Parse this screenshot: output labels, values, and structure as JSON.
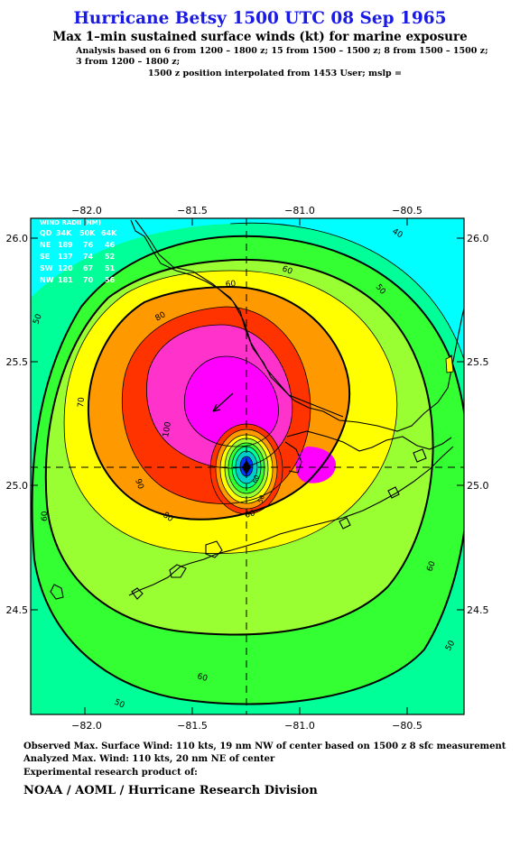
{
  "header": {
    "title": "Hurricane Betsy 1500 UTC 08 Sep 1965",
    "subtitle": "Max 1–min sustained surface winds (kt) for marine exposure",
    "analysis_line1": "Analysis based on  6 from 1200 – 1800 z;  15 from 1500 – 1500 z;  8 from 1500 – 1500 z;",
    "analysis_line2": "3 from 1200 – 1800 z;",
    "analysis_line3": "1500 z position interpolated from 1453 User; mslp ="
  },
  "map": {
    "lon_ticks": [
      "−82.0",
      "−81.5",
      "−81.0",
      "−80.5"
    ],
    "lat_ticks": [
      "26.0",
      "25.5",
      "25.0",
      "24.5"
    ],
    "center_lon": -81.25,
    "center_lat": 25.08,
    "contour_levels": [
      "40",
      "50",
      "60",
      "60",
      "70",
      "80",
      "80",
      "90",
      "100",
      "50",
      "60",
      "60",
      "50",
      "50",
      "60",
      "60",
      "50",
      "60"
    ],
    "colors": {
      "c30": "#00ffff",
      "c40": "#00ff99",
      "c50": "#33ff33",
      "c60": "#99ff33",
      "c70": "#ffff00",
      "c80": "#ff9900",
      "c90": "#ff3300",
      "c100": "#ff33cc",
      "c110": "#ff00ff",
      "eye_blue": "#0033ff",
      "eye_teal": "#00cccc"
    }
  },
  "wind_radii": {
    "title": "WIND RADII (NM)",
    "header": [
      "QD",
      "34K",
      "50K",
      "64K"
    ],
    "rows": [
      [
        "NE",
        "189",
        "76",
        "46"
      ],
      [
        "SE",
        "137",
        "74",
        "52"
      ],
      [
        "SW",
        "120",
        "67",
        "51"
      ],
      [
        "NW",
        "181",
        "70",
        "56"
      ]
    ]
  },
  "footer": {
    "observed": "Observed Max. Surface Wind: 110 kts, 19 nm NW of center based on 1500 z 8 sfc measurement",
    "analyzed": "Analyzed Max. Wind: 110 kts, 20 nm NE of center",
    "experimental": "Experimental research product of:",
    "credit": "NOAA / AOML / Hurricane Research Division"
  }
}
